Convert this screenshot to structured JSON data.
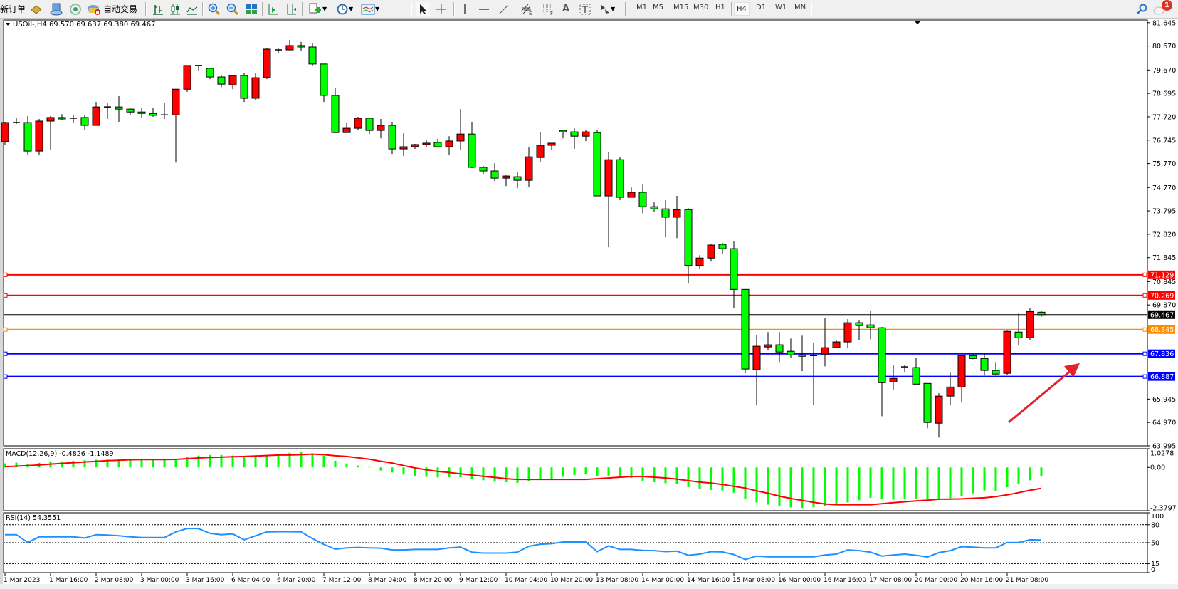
{
  "toolbar": {
    "new_order": "新订单",
    "auto_trading": "自动交易",
    "timeframes": [
      "M1",
      "M5",
      "M15",
      "M30",
      "H1",
      "H4",
      "D1",
      "W1",
      "MN"
    ],
    "active_timeframe": "H4",
    "notification_count": "1",
    "icons": [
      "new-order-icon",
      "market-watch-icon",
      "navigator-icon",
      "signals-icon",
      "auto-trading-icon",
      "bar-chart-icon",
      "candlestick-icon",
      "line-chart-icon",
      "zoom-in-icon",
      "zoom-out-icon",
      "tile-windows-icon",
      "autoscroll-icon",
      "chart-shift-icon",
      "indicators-icon",
      "periods-icon",
      "templates-icon",
      "cursor-icon",
      "crosshair-icon",
      "vertical-line-icon",
      "horizontal-line-icon",
      "trendline-icon",
      "equidistant-channel-icon",
      "fibonacci-icon",
      "text-icon",
      "text-label-icon",
      "arrows-icon",
      "search-icon",
      "notification-icon"
    ]
  },
  "chart_data": {
    "type": "candlestick",
    "symbol_header": "USOil-,H4  69.570 69.637 69.380 69.467",
    "colors": {
      "bull": "#ff0000",
      "bear": "#00ff00",
      "wick": "#000000"
    },
    "candles": [
      [
        76.68,
        77.51,
        76.56,
        77.48
      ],
      [
        77.48,
        77.66,
        77.42,
        77.46
      ],
      [
        77.48,
        77.75,
        76.14,
        76.29
      ],
      [
        76.29,
        77.63,
        76.14,
        77.54
      ],
      [
        77.54,
        77.75,
        76.35,
        77.69
      ],
      [
        77.69,
        77.83,
        77.57,
        77.63
      ],
      [
        77.63,
        77.8,
        77.45,
        77.66
      ],
      [
        77.69,
        77.8,
        77.18,
        77.36
      ],
      [
        77.36,
        78.34,
        77.36,
        78.13
      ],
      [
        78.13,
        78.28,
        77.63,
        78.12
      ],
      [
        78.13,
        78.58,
        77.51,
        78.04
      ],
      [
        78.04,
        78.07,
        77.78,
        77.92
      ],
      [
        77.92,
        78.1,
        77.69,
        77.86
      ],
      [
        77.86,
        78.1,
        77.72,
        77.78
      ],
      [
        77.78,
        78.31,
        77.63,
        77.8
      ],
      [
        77.8,
        78.87,
        75.81,
        78.87
      ],
      [
        78.87,
        79.86,
        78.76,
        79.86
      ],
      [
        79.86,
        79.86,
        79.65,
        79.85
      ],
      [
        79.74,
        79.74,
        79.29,
        79.38
      ],
      [
        79.38,
        79.44,
        78.96,
        79.08
      ],
      [
        79.05,
        79.47,
        78.87,
        79.44
      ],
      [
        79.44,
        79.56,
        78.34,
        78.49
      ],
      [
        78.49,
        79.56,
        78.43,
        79.35
      ],
      [
        79.35,
        80.6,
        79.29,
        80.54
      ],
      [
        80.51,
        80.6,
        80.39,
        80.5
      ],
      [
        80.51,
        80.93,
        80.45,
        80.69
      ],
      [
        80.69,
        80.84,
        80.48,
        80.63
      ],
      [
        80.63,
        80.78,
        79.86,
        79.92
      ],
      [
        79.92,
        79.92,
        78.34,
        78.61
      ],
      [
        78.61,
        78.91,
        77.06,
        77.06
      ],
      [
        77.06,
        77.48,
        77.06,
        77.24
      ],
      [
        77.24,
        77.72,
        77.15,
        77.66
      ],
      [
        77.66,
        77.69,
        77.0,
        77.15
      ],
      [
        77.15,
        77.63,
        76.82,
        77.36
      ],
      [
        77.36,
        77.51,
        76.17,
        76.38
      ],
      [
        76.38,
        77.03,
        76.08,
        76.47
      ],
      [
        76.47,
        76.59,
        76.38,
        76.56
      ],
      [
        76.56,
        76.74,
        76.47,
        76.62
      ],
      [
        76.65,
        76.8,
        76.47,
        76.47
      ],
      [
        76.47,
        76.91,
        76.14,
        76.71
      ],
      [
        76.71,
        78.04,
        76.35,
        77.0
      ],
      [
        77.0,
        77.51,
        75.58,
        75.61
      ],
      [
        75.61,
        75.67,
        75.31,
        75.46
      ],
      [
        75.46,
        75.78,
        75.04,
        75.16
      ],
      [
        75.16,
        75.28,
        74.83,
        75.25
      ],
      [
        75.22,
        75.4,
        74.74,
        75.07
      ],
      [
        75.07,
        76.47,
        74.8,
        76.05
      ],
      [
        76.02,
        77.09,
        75.84,
        76.53
      ],
      [
        76.53,
        76.62,
        76.35,
        76.62
      ],
      [
        77.15,
        77.15,
        76.82,
        77.09
      ],
      [
        77.09,
        77.24,
        76.38,
        76.91
      ],
      [
        76.91,
        77.18,
        76.71,
        77.09
      ],
      [
        77.06,
        77.18,
        74.42,
        74.42
      ],
      [
        74.42,
        76.26,
        72.28,
        75.93
      ],
      [
        75.93,
        76.05,
        74.24,
        74.36
      ],
      [
        74.36,
        74.77,
        74.36,
        74.57
      ],
      [
        74.57,
        74.89,
        73.7,
        73.97
      ],
      [
        73.97,
        74.15,
        73.76,
        73.88
      ],
      [
        73.88,
        74.24,
        72.69,
        73.53
      ],
      [
        73.53,
        74.42,
        72.66,
        73.85
      ],
      [
        73.85,
        73.91,
        70.76,
        71.52
      ],
      [
        71.52,
        71.95,
        71.39,
        71.83
      ],
      [
        71.83,
        72.4,
        71.68,
        72.37
      ],
      [
        72.4,
        72.46,
        72.01,
        72.22
      ],
      [
        72.22,
        72.55,
        69.75,
        70.52
      ],
      [
        70.52,
        70.52,
        67.02,
        67.2
      ],
      [
        67.17,
        68.62,
        65.68,
        68.15
      ],
      [
        68.12,
        68.74,
        67.99,
        68.21
      ],
      [
        68.21,
        68.74,
        67.49,
        67.91
      ],
      [
        67.94,
        68.47,
        67.67,
        67.79
      ],
      [
        67.79,
        68.59,
        67.11,
        67.73
      ],
      [
        67.73,
        68.29,
        65.71,
        67.76
      ],
      [
        67.82,
        69.34,
        67.31,
        68.09
      ],
      [
        68.09,
        68.41,
        68.06,
        68.33
      ],
      [
        68.33,
        69.28,
        68.09,
        69.13
      ],
      [
        69.13,
        69.22,
        68.41,
        69.01
      ],
      [
        69.04,
        69.63,
        68.44,
        68.92
      ],
      [
        68.92,
        68.95,
        65.23,
        66.63
      ],
      [
        66.66,
        67.37,
        66.33,
        66.81
      ],
      [
        67.29,
        67.37,
        67.05,
        67.26
      ],
      [
        67.26,
        67.67,
        66.57,
        66.57
      ],
      [
        66.6,
        66.6,
        64.73,
        64.97
      ],
      [
        64.94,
        66.19,
        64.34,
        66.07
      ],
      [
        66.07,
        67.05,
        65.68,
        66.45
      ],
      [
        66.45,
        67.79,
        65.8,
        67.76
      ],
      [
        67.76,
        67.82,
        67.61,
        67.64
      ],
      [
        67.64,
        67.88,
        66.93,
        67.14
      ],
      [
        67.14,
        67.49,
        66.93,
        66.99
      ],
      [
        67.02,
        68.8,
        66.96,
        68.77
      ],
      [
        68.74,
        69.51,
        68.21,
        68.5
      ],
      [
        68.5,
        69.75,
        68.41,
        69.6
      ],
      [
        69.57,
        69.637,
        69.38,
        69.467
      ]
    ],
    "price_axis": {
      "range": [
        63.995,
        81.645
      ],
      "ticks": [
        "81.645",
        "80.670",
        "79.670",
        "78.695",
        "77.720",
        "76.745",
        "75.770",
        "74.770",
        "73.795",
        "72.820",
        "71.845",
        "70.845",
        "69.870",
        "65.945",
        "64.970",
        "63.995"
      ]
    },
    "horizontal_lines": [
      {
        "price": "71.129",
        "color": "#ff0000"
      },
      {
        "price": "70.269",
        "color": "#ff0000"
      },
      {
        "price": "68.845",
        "color": "#ff8c00"
      },
      {
        "price": "67.836",
        "color": "#0000ff"
      },
      {
        "price": "66.887",
        "color": "#0000ff"
      }
    ],
    "bid_line": {
      "price": "69.467",
      "color": "#000000"
    },
    "time_labels": [
      "1 Mar 2023",
      "1 Mar 16:00",
      "2 Mar 08:00",
      "3 Mar 00:00",
      "3 Mar 16:00",
      "6 Mar 04:00",
      "6 Mar 20:00",
      "7 Mar 12:00",
      "8 Mar 04:00",
      "8 Mar 20:00",
      "9 Mar 12:00",
      "10 Mar 04:00",
      "10 Mar 20:00",
      "13 Mar 08:00",
      "14 Mar 00:00",
      "14 Mar 16:00",
      "15 Mar 08:00",
      "16 Mar 00:00",
      "16 Mar 16:00",
      "17 Mar 08:00",
      "20 Mar 00:00",
      "20 Mar 16:00",
      "21 Mar 08:00"
    ],
    "macd": {
      "label": "MACD(12,26,9) -0.4826 -1.1489",
      "range": [
        -2.3797,
        1.0278
      ],
      "axis_labels": [
        "1.0278",
        "0.00",
        "-2.3797"
      ],
      "histogram_color": "#00ff00",
      "signal_color": "#ff0000",
      "histogram": [
        0.22,
        0.26,
        0.21,
        0.25,
        0.33,
        0.33,
        0.37,
        0.39,
        0.42,
        0.43,
        0.46,
        0.46,
        0.46,
        0.42,
        0.42,
        0.42,
        0.57,
        0.65,
        0.68,
        0.68,
        0.65,
        0.6,
        0.63,
        0.68,
        0.74,
        0.8,
        0.83,
        0.76,
        0.64,
        0.37,
        0.22,
        0.1,
        0.02,
        -0.17,
        -0.28,
        -0.39,
        -0.48,
        -0.52,
        -0.55,
        -0.54,
        -0.54,
        -0.62,
        -0.71,
        -0.79,
        -0.81,
        -0.85,
        -0.77,
        -0.66,
        -0.64,
        -0.52,
        -0.42,
        -0.35,
        -0.5,
        -0.46,
        -0.54,
        -0.58,
        -0.73,
        -0.81,
        -0.87,
        -0.9,
        -1.09,
        -1.2,
        -1.24,
        -1.27,
        -1.39,
        -1.74,
        -1.93,
        -2.05,
        -2.12,
        -2.2,
        -2.23,
        -2.19,
        -2.15,
        -2.02,
        -1.93,
        -1.8,
        -1.67,
        -1.74,
        -1.77,
        -1.76,
        -1.74,
        -1.74,
        -1.71,
        -1.7,
        -1.58,
        -1.43,
        -1.27,
        -1.29,
        -1.09,
        -0.93,
        -0.71,
        -0.48
      ],
      "signal": [
        0.04,
        0.07,
        0.1,
        0.13,
        0.18,
        0.22,
        0.26,
        0.3,
        0.33,
        0.37,
        0.39,
        0.42,
        0.43,
        0.43,
        0.43,
        0.44,
        0.48,
        0.52,
        0.55,
        0.56,
        0.59,
        0.6,
        0.63,
        0.65,
        0.68,
        0.68,
        0.7,
        0.73,
        0.7,
        0.64,
        0.6,
        0.53,
        0.45,
        0.34,
        0.24,
        0.1,
        -0.03,
        -0.13,
        -0.22,
        -0.28,
        -0.35,
        -0.42,
        -0.49,
        -0.55,
        -0.62,
        -0.66,
        -0.66,
        -0.66,
        -0.66,
        -0.66,
        -0.66,
        -0.66,
        -0.62,
        -0.58,
        -0.54,
        -0.5,
        -0.5,
        -0.54,
        -0.58,
        -0.64,
        -0.73,
        -0.81,
        -0.86,
        -0.94,
        -1.04,
        -1.14,
        -1.29,
        -1.42,
        -1.58,
        -1.71,
        -1.81,
        -1.92,
        -2.01,
        -2.05,
        -2.05,
        -2.05,
        -2.05,
        -2.0,
        -1.94,
        -1.89,
        -1.84,
        -1.8,
        -1.75,
        -1.74,
        -1.73,
        -1.7,
        -1.67,
        -1.61,
        -1.51,
        -1.39,
        -1.26,
        -1.15
      ]
    },
    "rsi": {
      "label": "RSI(14) 54.3551",
      "range": [
        0,
        100
      ],
      "levels": [
        80,
        50,
        15
      ],
      "axis_labels": [
        "100",
        "80",
        "50",
        "15",
        "0"
      ],
      "color": "#1e90ff",
      "values": [
        63.5,
        63.5,
        50.4,
        59.8,
        59.8,
        59.8,
        59.8,
        57.8,
        63.5,
        62.7,
        61.5,
        59.8,
        58.6,
        58.6,
        58.6,
        68.1,
        73.8,
        73.4,
        65.6,
        63.5,
        64.8,
        54.9,
        61.5,
        68.1,
        68.5,
        68.5,
        68.1,
        57.0,
        47.1,
        39.3,
        41.3,
        42.1,
        41.3,
        40.9,
        38.0,
        38.0,
        38.8,
        38.8,
        38.8,
        41.3,
        42.6,
        34.3,
        32.7,
        32.7,
        32.7,
        34.3,
        44.0,
        47.5,
        48.3,
        51.2,
        51.2,
        51.2,
        35.1,
        44.6,
        38.8,
        38.8,
        37.2,
        36.8,
        35.1,
        36.0,
        29.0,
        31.0,
        35.1,
        34.7,
        30.2,
        22.0,
        27.7,
        26.5,
        26.5,
        26.5,
        26.5,
        26.5,
        29.4,
        31.0,
        38.0,
        36.8,
        34.3,
        27.7,
        29.4,
        31.0,
        29.0,
        26.1,
        33.5,
        36.8,
        43.4,
        42.6,
        41.3,
        41.3,
        50.4,
        50.4,
        54.9,
        54.36
      ]
    },
    "annotation_arrow": {
      "color": "#e8202a",
      "direction": "up-right"
    }
  }
}
